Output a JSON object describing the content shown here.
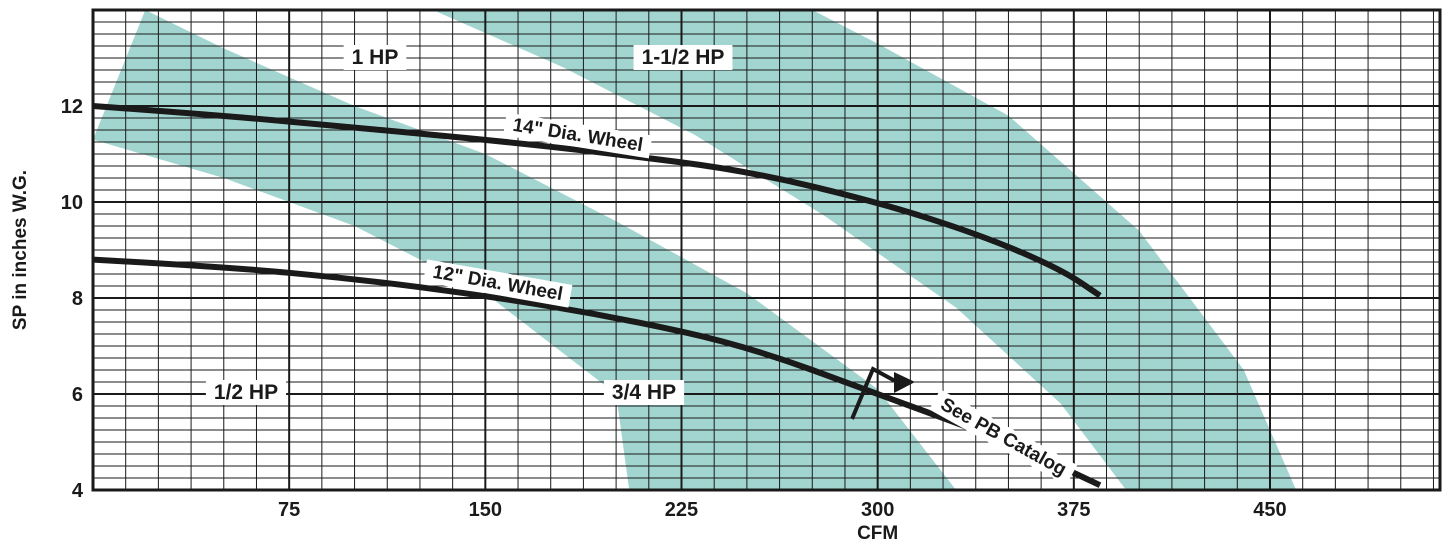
{
  "colors": {
    "band": "#a3d5d0",
    "grid": "#1a1a1a",
    "curve": "#1a1a1a",
    "background": "#ffffff"
  },
  "chart_data": {
    "type": "line",
    "xlabel": "CFM",
    "ylabel": "SP in inches W.G.",
    "xlim": [
      0,
      515
    ],
    "ylim": [
      4,
      14
    ],
    "x_ticks": [
      75,
      150,
      225,
      300,
      375,
      450
    ],
    "y_ticks": [
      4,
      6,
      8,
      10,
      12
    ],
    "grid": true,
    "series": [
      {
        "name": "14\" Dia. Wheel",
        "points": [
          [
            0,
            12.0
          ],
          [
            50,
            11.8
          ],
          [
            100,
            11.55
          ],
          [
            150,
            11.3
          ],
          [
            200,
            11.0
          ],
          [
            250,
            10.65
          ],
          [
            300,
            10.0
          ],
          [
            340,
            9.3
          ],
          [
            370,
            8.6
          ],
          [
            385,
            8.05
          ]
        ]
      },
      {
        "name": "12\" Dia. Wheel",
        "points": [
          [
            0,
            8.8
          ],
          [
            50,
            8.65
          ],
          [
            100,
            8.4
          ],
          [
            150,
            8.05
          ],
          [
            200,
            7.6
          ],
          [
            250,
            7.0
          ],
          [
            300,
            6.0
          ],
          [
            350,
            5.0
          ],
          [
            385,
            4.1
          ]
        ]
      }
    ],
    "bands": [
      {
        "name": "1 HP",
        "upper": [
          [
            20,
            14
          ],
          [
            50,
            13.2
          ],
          [
            100,
            12.0
          ],
          [
            150,
            11.0
          ],
          [
            200,
            9.6
          ],
          [
            250,
            8.1
          ],
          [
            300,
            6.1
          ],
          [
            330,
            4
          ]
        ],
        "lower": [
          [
            0,
            11.3
          ],
          [
            50,
            10.5
          ],
          [
            100,
            9.5
          ],
          [
            150,
            8.1
          ],
          [
            200,
            6.0
          ],
          [
            205,
            4
          ]
        ]
      },
      {
        "name": "1-1/2 HP",
        "upper": [
          [
            275,
            14
          ],
          [
            300,
            13.3
          ],
          [
            350,
            11.8
          ],
          [
            400,
            9.4
          ],
          [
            440,
            6.5
          ],
          [
            460,
            4
          ]
        ],
        "lower": [
          [
            130,
            14
          ],
          [
            180,
            12.8
          ],
          [
            230,
            11.4
          ],
          [
            280,
            9.7
          ],
          [
            330,
            7.8
          ],
          [
            370,
            5.8
          ],
          [
            395,
            4
          ]
        ]
      }
    ],
    "annotations": [
      {
        "text": "1 HP"
      },
      {
        "text": "1-1/2 HP"
      },
      {
        "text": "1/2 HP"
      },
      {
        "text": "3/4 HP"
      },
      {
        "text": "14\" Dia. Wheel"
      },
      {
        "text": "12\" Dia. Wheel"
      },
      {
        "text": "See PB Catalog"
      }
    ]
  }
}
